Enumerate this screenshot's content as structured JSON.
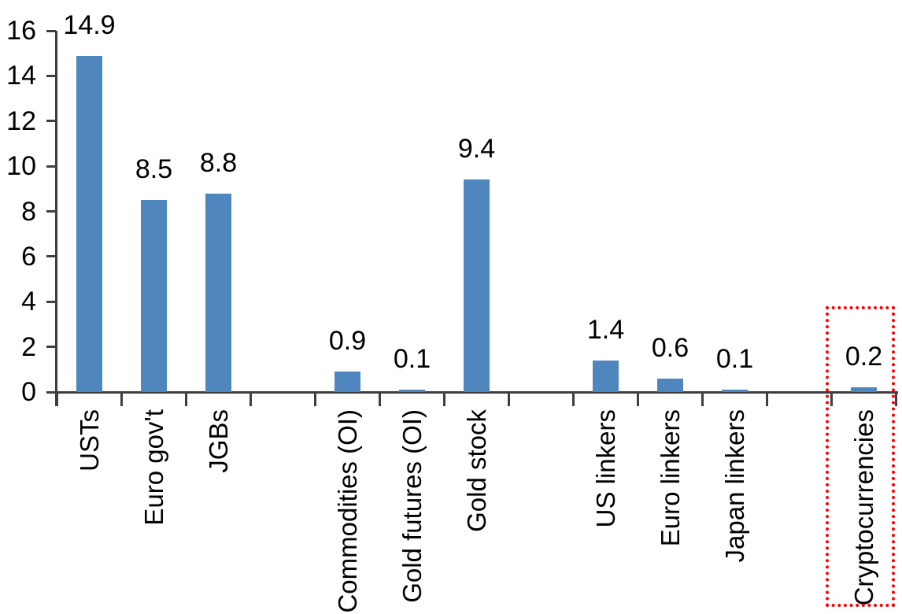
{
  "chart_data": {
    "type": "bar",
    "title": "",
    "xlabel": "",
    "ylabel": "",
    "categories": [
      "USTs",
      "Euro gov't",
      "JGBs",
      "Commodities (OI)",
      "Gold futures (OI)",
      "Gold stock",
      "US linkers",
      "Euro linkers",
      "Japan linkers",
      "Cryptocurrencies"
    ],
    "values": [
      14.9,
      8.5,
      8.8,
      0.9,
      0.1,
      9.4,
      1.4,
      0.6,
      0.1,
      0.2
    ],
    "data_labels": [
      "14.9",
      "8.5",
      "8.8",
      "0.9",
      "0.1",
      "9.4",
      "1.4",
      "0.6",
      "0.1",
      "0.2"
    ],
    "slot_indices": [
      0,
      1,
      2,
      4,
      5,
      6,
      8,
      9,
      10,
      12
    ],
    "total_slots": 13,
    "ylim": [
      0,
      16
    ],
    "yticks": [
      "0",
      "2",
      "4",
      "6",
      "8",
      "10",
      "12",
      "14",
      "16"
    ],
    "grid": false,
    "legend": false,
    "colors": {
      "bar": "#4e86bd",
      "axis": "#3f3f3f",
      "text": "#000000",
      "highlight_box": "#ff0000",
      "background": "#ffffff"
    },
    "highlight": {
      "category": "Cryptocurrencies",
      "style": "red-dotted-rectangle"
    }
  }
}
